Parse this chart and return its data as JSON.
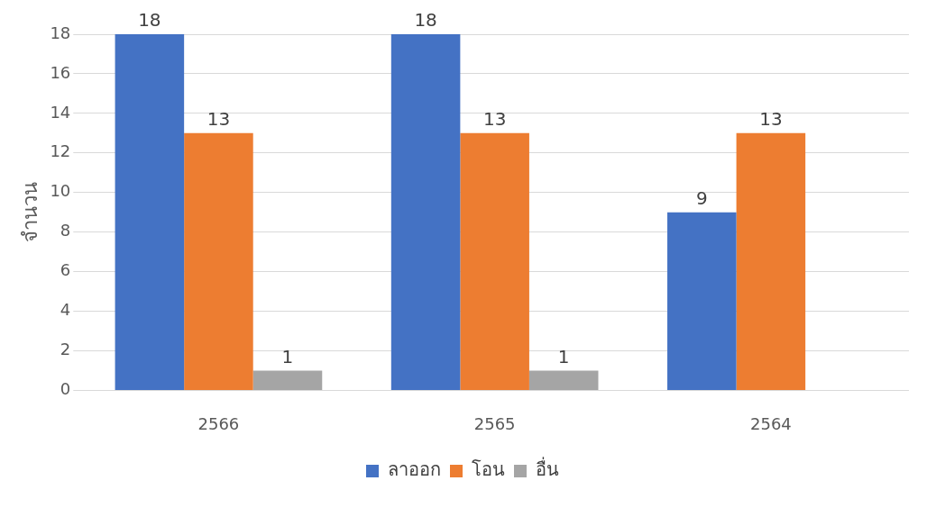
{
  "chart_data": {
    "type": "bar",
    "ylabel": "จำนวน",
    "categories": [
      "2566",
      "2565",
      "2564"
    ],
    "series": [
      {
        "name": "ลาออก",
        "color": "#4472c4",
        "values": [
          18,
          18,
          9
        ]
      },
      {
        "name": "โอน",
        "color": "#ed7d31",
        "values": [
          13,
          13,
          13
        ]
      },
      {
        "name": "อื่น",
        "color": "#a5a5a5",
        "values": [
          1,
          1,
          null
        ]
      }
    ],
    "ylim": [
      0,
      18
    ],
    "yticks": [
      0,
      2,
      4,
      6,
      8,
      10,
      12,
      14,
      16,
      18
    ],
    "grid": "y",
    "legend": "bottom",
    "data_labels": true
  }
}
